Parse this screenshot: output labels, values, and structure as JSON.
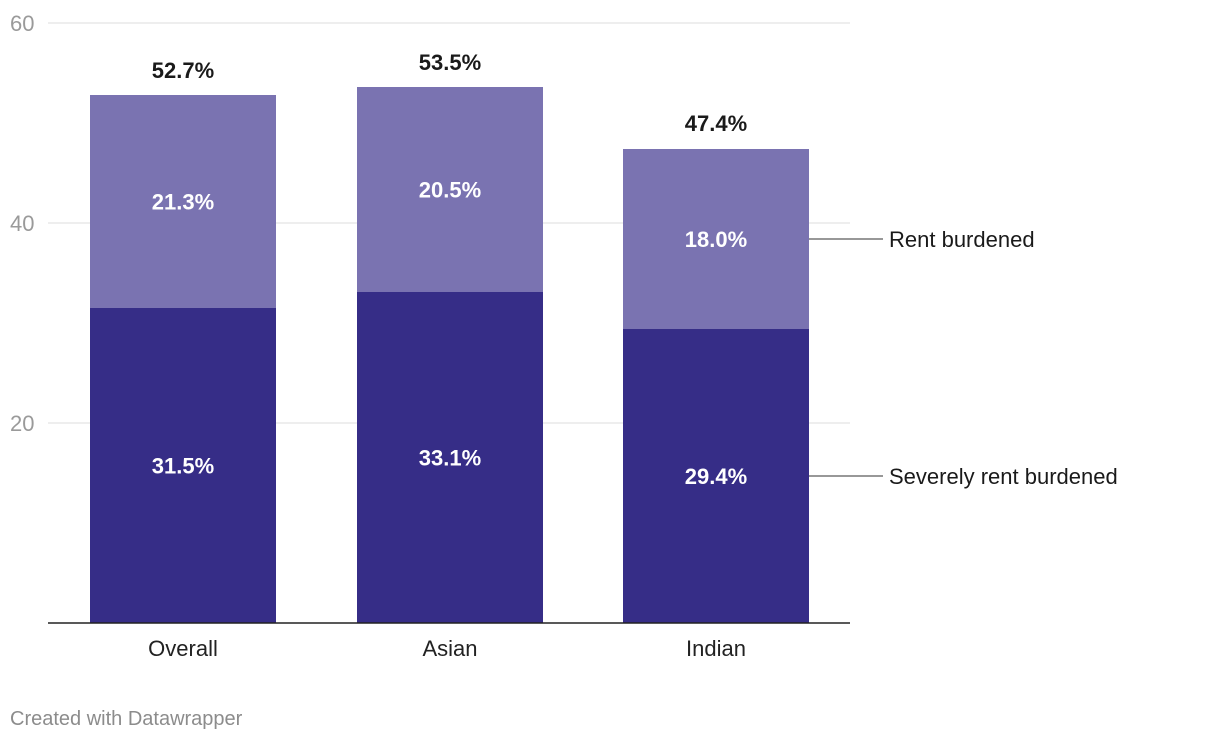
{
  "chart_data": {
    "type": "bar",
    "stacked": true,
    "categories": [
      "Overall",
      "Asian",
      "Indian"
    ],
    "series": [
      {
        "name": "Severely rent burdened",
        "values": [
          31.5,
          33.1,
          29.4
        ],
        "labels": [
          "31.5%",
          "33.1%",
          "29.4%"
        ],
        "color": "#362d87"
      },
      {
        "name": "Rent burdened",
        "values": [
          21.3,
          20.5,
          18.0
        ],
        "labels": [
          "21.3%",
          "20.5%",
          "18.0%"
        ],
        "color": "#7a73b1"
      }
    ],
    "totals": [
      52.7,
      53.5,
      47.4
    ],
    "total_labels": [
      "52.7%",
      "53.5%",
      "47.4%"
    ],
    "ylim": [
      0,
      60
    ],
    "yticks": [
      20,
      40,
      60
    ],
    "grid": true,
    "legend": "right, inline labels"
  },
  "credit": "Created with Datawrapper"
}
